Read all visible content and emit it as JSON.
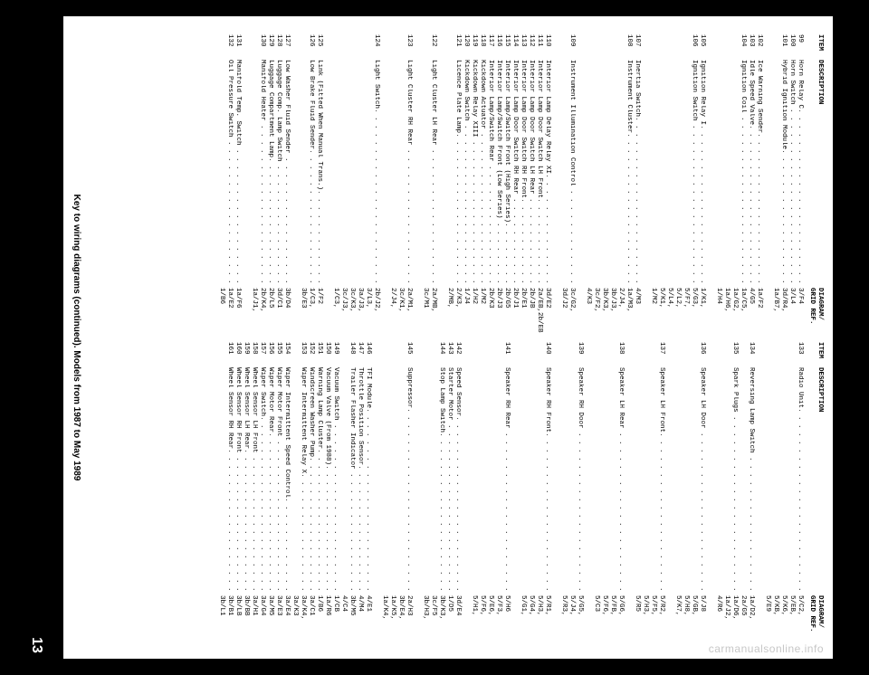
{
  "headers": {
    "item": "ITEM",
    "desc": "DESCRIPTION",
    "ref1": "DIAGRAM/",
    "ref2": "GRID REF."
  },
  "caption": "Key to wiring diagrams (continued). Models from 1987 to May 1989",
  "page_number": "13",
  "watermark": "carmanualsonline.info",
  "left": [
    {
      "item": "99",
      "desc": "Horn Relay C",
      "refs": [
        "3/F4"
      ]
    },
    {
      "item": "100",
      "desc": "Horn Switch",
      "refs": [
        "3/L4"
      ]
    },
    {
      "item": "101",
      "desc": "Hybrid Ignition Module",
      "refs": [
        "3d/R4,",
        "1a/B7,"
      ],
      "gap_after": true
    },
    {
      "item": "102",
      "desc": "Ice Warning Sender",
      "refs": [
        "1a/F2"
      ]
    },
    {
      "item": "103",
      "desc": "Idle Speed Valve",
      "refs": [
        "4/G5"
      ]
    },
    {
      "item": "104",
      "desc": "Ignition Coil",
      "refs": [
        "1a/C5,",
        "1a/G2,",
        "1a/H6,",
        "1/H4"
      ],
      "gap_after": true
    },
    {
      "item": "105",
      "desc": "Ignition Relay I",
      "refs": [
        "1/K1,"
      ]
    },
    {
      "item": "106",
      "desc": "Ignition Switch",
      "refs": [
        "5/G3,",
        "5/F7,",
        "5/L2,",
        "5/L4,",
        "5/K1,",
        "1/M2"
      ],
      "gap_after": true
    },
    {
      "item": "107",
      "desc": "Inertia Switch",
      "refs": [
        "4/M3"
      ]
    },
    {
      "item": "108",
      "desc": "Instrument Cluster",
      "refs": [
        "1a/M3,",
        "2/J4,",
        "3b/J3,",
        "3b/K3,",
        "3c/F2,",
        "4/K3"
      ],
      "gap_after": true
    },
    {
      "item": "109",
      "desc": "Instrument Illumination Control",
      "refs": [
        "3c/G2,",
        "3d/J2"
      ],
      "gap_after": true
    },
    {
      "item": "110",
      "desc": "Interior Lamp Delay Relay XI",
      "refs": [
        "3d/E2"
      ]
    },
    {
      "item": "111",
      "desc": "Interior Lamp Door Switch LH Front",
      "refs": [
        "2a/EB,2b/EB"
      ]
    },
    {
      "item": "112",
      "desc": "Interior Lamp Door Switch LH Rear",
      "refs": [
        "2b/JB"
      ]
    },
    {
      "item": "113",
      "desc": "Interior Lamp Door Switch RH Front",
      "refs": [
        "2b/E1"
      ]
    },
    {
      "item": "114",
      "desc": "Interior Lamp Door Switch RH Rear",
      "refs": [
        "2b/J1"
      ]
    },
    {
      "item": "115",
      "desc": "Interior Lamp/Switch Front (High Series)",
      "refs": [
        "2b/G5"
      ]
    },
    {
      "item": "116",
      "desc": "Interior Lamp/Switch Front (Low Series)",
      "refs": [
        "2b/J3"
      ]
    },
    {
      "item": "117",
      "desc": "Interior Lamp/Switch Rear",
      "refs": [
        "2b/K3"
      ]
    },
    {
      "item": "118",
      "desc": "Kickdown Actuator",
      "refs": [
        "1/M2"
      ]
    },
    {
      "item": "119",
      "desc": "Kickdown Relay XIII",
      "refs": [
        "1/H2"
      ]
    },
    {
      "item": "120",
      "desc": "Kickdown Switch",
      "refs": [
        "1/J4"
      ]
    },
    {
      "item": "121",
      "desc": "Licence Plate Lamp",
      "refs": [
        "2/K3,",
        "2/MB,"
      ],
      "gap_after": true
    },
    {
      "item": "122",
      "desc": "Light Cluster LH Rear",
      "refs": [
        "2a/MB,",
        "3c/M1"
      ],
      "gap_after": true
    },
    {
      "item": "123",
      "desc": "Light Cluster RH Rear",
      "refs": [
        "2a/M1,",
        "3c/K1,",
        "2/J4,"
      ],
      "gap_after": true
    },
    {
      "item": "124",
      "desc": "Light Switch",
      "refs": [
        "2b/J2,",
        "3/L3,",
        "3a/J3,",
        "3c/K3,",
        "3c/J3,",
        "1/C3,"
      ],
      "gap_after": true
    },
    {
      "item": "125",
      "desc": "Link (Fitted When Manual Trans.)",
      "refs": [
        "1/F2"
      ]
    },
    {
      "item": "126",
      "desc": "Low Brake Fluid Sender",
      "refs": [
        "1/C3,",
        "3b/E3"
      ],
      "gap_after": true
    },
    {
      "item": "127",
      "desc": "Low Washer Fluid Sender",
      "refs": [
        "3b/D4"
      ]
    },
    {
      "item": "128",
      "desc": "Luggage Comp. Lamp Switch",
      "refs": [
        "3d/C1"
      ]
    },
    {
      "item": "129",
      "desc": "Luggage Compartment Lamp",
      "refs": [
        "2b/L5"
      ]
    },
    {
      "item": "130",
      "desc": "Manifold Heater",
      "refs": [
        "2b/K4,",
        "1a/J1,"
      ],
      "gap_after": true
    },
    {
      "item": "131",
      "desc": "Manifold Temp. Switch",
      "refs": [
        "1a/F6"
      ]
    },
    {
      "item": "132",
      "desc": "Oil Pressure Switch",
      "refs": [
        "1a/E2",
        "1/B6"
      ]
    }
  ],
  "right": [
    {
      "item": "133",
      "desc": "Radio Unit",
      "refs": [
        "5/C2,",
        "5/EB,",
        "5/K6,",
        "5/KB,",
        "5/E9"
      ],
      "gap_after": true
    },
    {
      "item": "134",
      "desc": "Reversing Lamp Switch",
      "refs": [
        "1a/D2,",
        "2a/G5"
      ]
    },
    {
      "item": "135",
      "desc": "Spark Plugs",
      "refs": [
        "1a/D6,",
        "1a/J2,",
        "4/R6"
      ],
      "gap_after": true
    },
    {
      "item": "136",
      "desc": "Speaker LH Door",
      "refs": [
        "5/J8",
        "5/GB,",
        "5/H8,",
        "5/K7,"
      ],
      "gap_after": true
    },
    {
      "item": "137",
      "desc": "Speaker LH Front",
      "refs": [
        "5/R2,",
        "5/F5,",
        "5/H3,",
        "5/R5"
      ],
      "gap_after": true
    },
    {
      "item": "138",
      "desc": "Speaker LH Rear",
      "refs": [
        "5/G6,",
        "5/FB,",
        "5/F6,",
        "5/C3"
      ],
      "gap_after": true
    },
    {
      "item": "139",
      "desc": "Speaker RH Door",
      "refs": [
        "5/G5,",
        "5/J4,",
        "5/R3,"
      ],
      "gap_after": true
    },
    {
      "item": "140",
      "desc": "Speaker RH Front",
      "refs": [
        "5/R1,",
        "5/H3,",
        "5/G4,",
        "5/G1,"
      ],
      "gap_after": true
    },
    {
      "item": "141",
      "desc": "Speaker RH Rear",
      "refs": [
        "5/H6",
        "5/F3,",
        "5/E6,",
        "5/F6,",
        "5/H1,"
      ],
      "gap_after": true
    },
    {
      "item": "142",
      "desc": "Speed Sensor",
      "refs": [
        "3d/E4"
      ]
    },
    {
      "item": "143",
      "desc": "Starter Motor",
      "refs": [
        "1/D5"
      ]
    },
    {
      "item": "144",
      "desc": "Stop Lamp Switch",
      "refs": [
        "3b/K3,",
        "3c/F5",
        "3b/H3,"
      ],
      "gap_after": true
    },
    {
      "item": "145",
      "desc": "Suppressor",
      "refs": [
        "2a/H3",
        "3b/E4,",
        "1a/K5,",
        "1a/K4,"
      ],
      "gap_after": true
    },
    {
      "item": "146",
      "desc": "TFI Module",
      "refs": [
        "4/E1"
      ]
    },
    {
      "item": "147",
      "desc": "Throttle Position Sensor",
      "refs": [
        "4/M4"
      ]
    },
    {
      "item": "148",
      "desc": "Trailer Flasher Indicator",
      "refs": [
        "3b/M5",
        "4/C4"
      ]
    },
    {
      "item": "149",
      "desc": "Vacuum Switch",
      "refs": [
        "1/CB"
      ]
    },
    {
      "item": "150",
      "desc": "Vacuum Valve (From 1988)",
      "refs": [
        "1a/R6"
      ]
    },
    {
      "item": "151",
      "desc": "Warning Lamp Cluster",
      "refs": [
        "1/B6"
      ]
    },
    {
      "item": "152",
      "desc": "Windscreen Washer Pump",
      "refs": [
        "3a/C1"
      ]
    },
    {
      "item": "153",
      "desc": "Wiper Intermittent Relay X",
      "refs": [
        "3a/K4,",
        "3a/K3"
      ]
    },
    {
      "item": "154",
      "desc": "Wiper Intermittent Speed Control",
      "refs": [
        "3a/E4"
      ]
    },
    {
      "item": "155",
      "desc": "Wiper Motor Front",
      "refs": [
        "3a/E3"
      ]
    },
    {
      "item": "156",
      "desc": "Wiper Motor Rear",
      "refs": [
        "3a/M5"
      ]
    },
    {
      "item": "157",
      "desc": "Wiper Switch",
      "refs": [
        "3a/G4"
      ]
    },
    {
      "item": "158",
      "desc": "Wheel Sensor LH Front",
      "refs": [
        "3a/H1"
      ]
    },
    {
      "item": "159",
      "desc": "Wheel Sensor LH Rear",
      "refs": [
        "3b/BB"
      ]
    },
    {
      "item": "160",
      "desc": "Wheel Sensor RH Front",
      "refs": [
        "3b/LB"
      ]
    },
    {
      "item": "161",
      "desc": "Wheel Sensor RH Rear",
      "refs": [
        "3b/B1",
        "3b/L1"
      ]
    }
  ]
}
